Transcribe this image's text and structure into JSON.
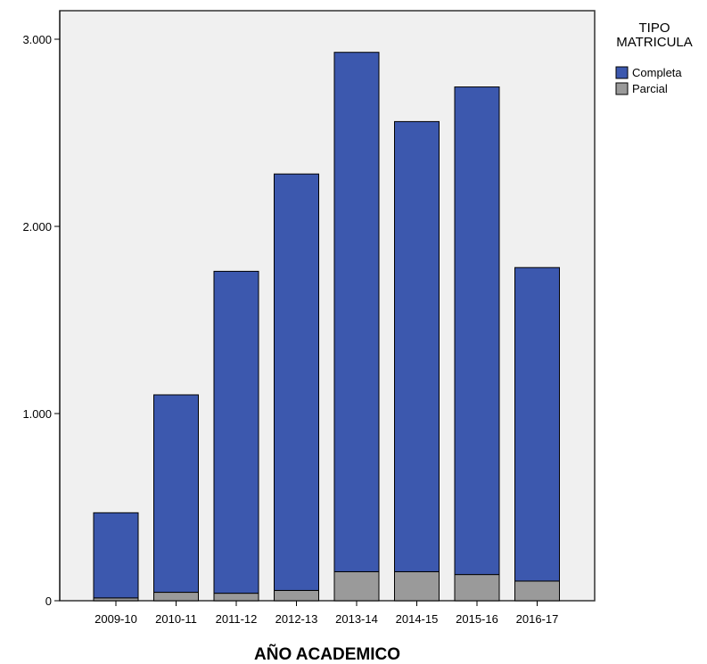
{
  "chart_data": {
    "type": "bar",
    "stacked": true,
    "xlabel": "AÑO ACADEMICO",
    "ylabel": "",
    "ylim": [
      0,
      3000
    ],
    "y_ticks": [
      0,
      1000,
      2000,
      3000
    ],
    "y_tick_labels": [
      "0",
      "1.000",
      "2.000",
      "3.000"
    ],
    "grid": false,
    "categories": [
      "2009-10",
      "2010-11",
      "2011-12",
      "2012-13",
      "2013-14",
      "2014-15",
      "2015-16",
      "2016-17"
    ],
    "series": [
      {
        "name": "Parcial",
        "color": "#9a9a9a",
        "values": [
          15,
          45,
          40,
          55,
          155,
          155,
          140,
          105
        ]
      },
      {
        "name": "Completa",
        "color": "#3c58ae",
        "values": [
          455,
          1055,
          1720,
          2225,
          2775,
          2405,
          2605,
          1675
        ]
      }
    ],
    "legend": {
      "title_lines": [
        "TIPO",
        "MATRICULA"
      ],
      "items": [
        "Completa",
        "Parcial"
      ],
      "placement": "right"
    },
    "plot_background": "#f0f0f0",
    "bar_outline": "#000000"
  }
}
